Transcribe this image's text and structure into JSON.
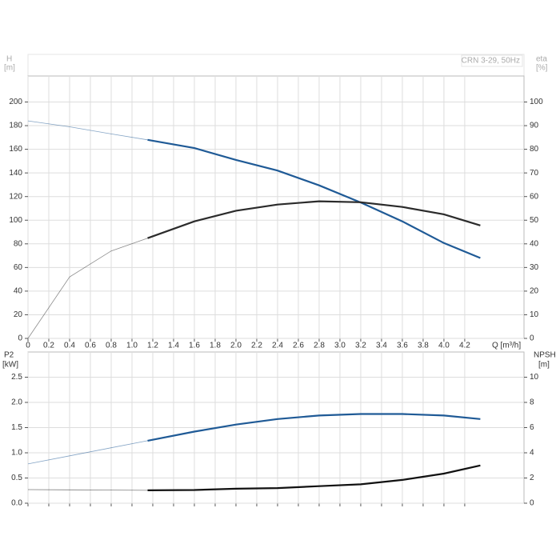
{
  "chart_data": [
    {
      "type": "line",
      "title": "CRN 3-29, 50Hz",
      "ylabel": "H",
      "yunit": "[m]",
      "y2label": "eta",
      "y2unit": "[%]",
      "xlabel": "Q [m³/h]",
      "duty_start": 1.15,
      "x": [
        0,
        0.4,
        0.8,
        1.15,
        1.6,
        2.0,
        2.4,
        2.8,
        3.2,
        3.6,
        4.0,
        4.35
      ],
      "xlim": [
        0,
        4.77
      ],
      "xticks": [
        0,
        0.2,
        0.4,
        0.6,
        0.8,
        {
          "value": 1,
          "label": "1.0"
        },
        1.2,
        1.4,
        1.6,
        1.8,
        {
          "value": 2,
          "label": "2.0"
        },
        2.2,
        2.4,
        2.6,
        2.8,
        {
          "value": 3,
          "label": "3.0"
        },
        3.2,
        3.4,
        3.6,
        3.8,
        {
          "value": 4,
          "label": "4.0"
        },
        4.2
      ],
      "ylim": [
        0,
        222
      ],
      "yticks": [
        0,
        20,
        40,
        60,
        80,
        100,
        120,
        140,
        160,
        180,
        200
      ],
      "y2lim": [
        0,
        111
      ],
      "y2ticks": [
        0,
        10,
        20,
        30,
        40,
        50,
        60,
        70,
        80,
        90,
        100
      ],
      "grid": true,
      "series": [
        {
          "color": "#1f5a96",
          "values": [
            184,
            179,
            173,
            168,
            161,
            151,
            142,
            129.5,
            115,
            99,
            80.7,
            68
          ]
        },
        {
          "color": "#2b2b2b",
          "axis": "y2",
          "values": [
            0,
            26,
            37,
            42.4,
            49.5,
            54,
            56.6,
            58,
            57.6,
            55.6,
            52.5,
            47.8
          ]
        }
      ]
    },
    {
      "type": "line",
      "ylabel": "P2",
      "yunit": "[kW]",
      "y2label": "NPSH",
      "y2unit": "[m]",
      "duty_start": 1.15,
      "x": [
        0,
        0.4,
        0.8,
        1.15,
        1.6,
        2.0,
        2.4,
        2.8,
        3.2,
        3.6,
        4.0,
        4.35
      ],
      "xlim": [
        0,
        4.77
      ],
      "ylim": [
        0,
        3
      ],
      "yticks": [
        {
          "value": 0,
          "label": "0.0"
        },
        0.5,
        {
          "value": 1,
          "label": "1.0"
        },
        1.5,
        {
          "value": 2,
          "label": "2.0"
        },
        2.5
      ],
      "y2lim": [
        0,
        12
      ],
      "y2ticks": [
        0,
        2,
        4,
        6,
        8,
        10
      ],
      "grid": true,
      "series": [
        {
          "color": "#1f5a96",
          "values": [
            0.78,
            0.94,
            1.1,
            1.24,
            1.42,
            1.56,
            1.67,
            1.74,
            1.77,
            1.77,
            1.74,
            1.67
          ]
        },
        {
          "color": "#111111",
          "axis": "y2",
          "values": [
            1.08,
            1.06,
            1.04,
            1.02,
            1.05,
            1.15,
            1.2,
            1.35,
            1.5,
            1.85,
            2.35,
            3.0
          ]
        }
      ]
    }
  ]
}
